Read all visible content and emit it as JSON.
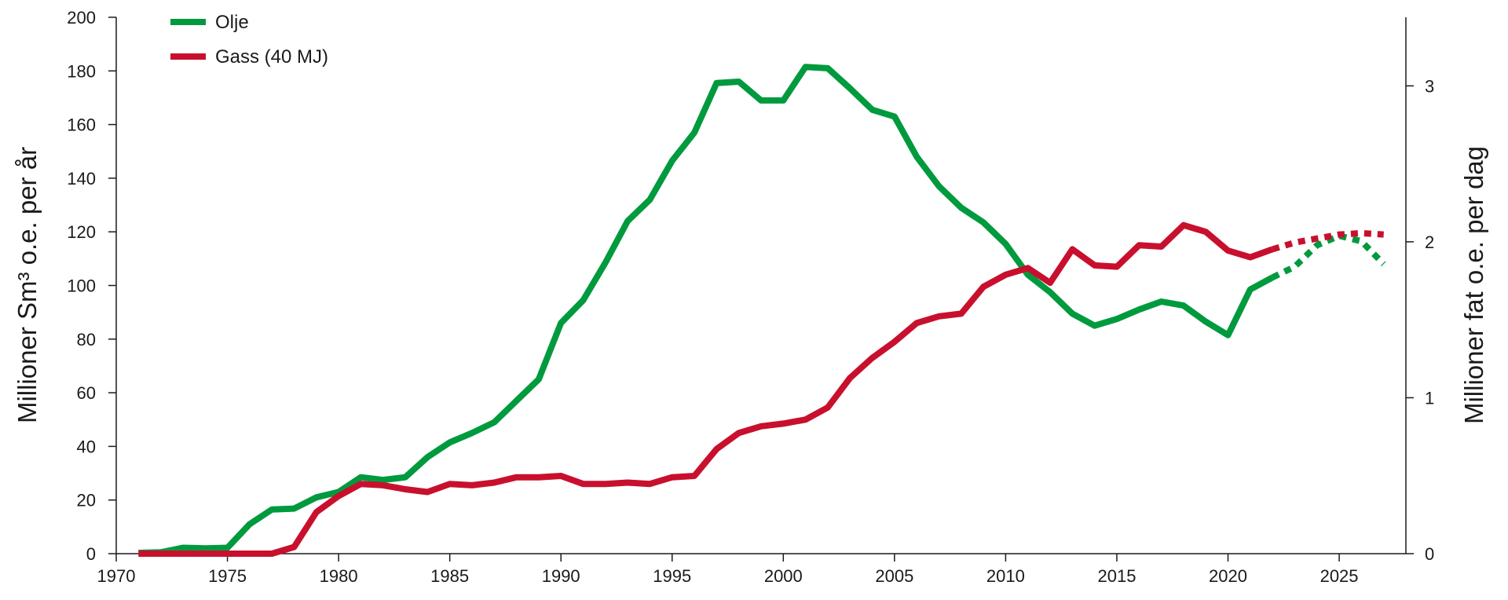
{
  "chart_data": {
    "type": "line",
    "title": "",
    "xlabel": "",
    "ylabel_left": "Millioner  Sm³ o.e. per år",
    "ylabel_right": "Millioner fat o.e. per dag",
    "xlim": [
      1970,
      2028
    ],
    "ylim_left": [
      0,
      200
    ],
    "ylim_right": [
      0,
      3.44
    ],
    "x_ticks": [
      1970,
      1975,
      1980,
      1985,
      1990,
      1995,
      2000,
      2005,
      2010,
      2015,
      2020,
      2025
    ],
    "y_ticks_left": [
      0,
      20,
      40,
      60,
      80,
      100,
      120,
      140,
      160,
      180,
      200
    ],
    "y_ticks_right": [
      0,
      1,
      2,
      3
    ],
    "grid": false,
    "legend_position": "top-left",
    "series": [
      {
        "name": "Olje",
        "color": "#009a3e",
        "x": [
          1971,
          1972,
          1973,
          1974,
          1975,
          1976,
          1977,
          1978,
          1979,
          1980,
          1981,
          1982,
          1983,
          1984,
          1985,
          1986,
          1987,
          1988,
          1989,
          1990,
          1991,
          1992,
          1993,
          1994,
          1995,
          1996,
          1997,
          1998,
          1999,
          2000,
          2001,
          2002,
          2003,
          2004,
          2005,
          2006,
          2007,
          2008,
          2009,
          2010,
          2011,
          2012,
          2013,
          2014,
          2015,
          2016,
          2017,
          2018,
          2019,
          2020,
          2021,
          2022
        ],
        "values": [
          0.3,
          0.5,
          2.2,
          2,
          2.2,
          11,
          16.5,
          16.8,
          21,
          23,
          28.5,
          27.5,
          28.5,
          36,
          41.5,
          45,
          49,
          57,
          65,
          86,
          94.5,
          108.5,
          124,
          132,
          146.5,
          157,
          175.5,
          176,
          169,
          169,
          181.5,
          181,
          173.5,
          165.5,
          163,
          148,
          137,
          129,
          123.5,
          115.5,
          104,
          97.5,
          89.5,
          85,
          87.5,
          91,
          94,
          92.5,
          86.5,
          81.5,
          98.5,
          103
        ],
        "forecast": {
          "x": [
            2022,
            2023,
            2024,
            2025,
            2026,
            2027
          ],
          "values": [
            103,
            107,
            115,
            118.5,
            116.5,
            108
          ]
        }
      },
      {
        "name": "Gass (40 MJ)",
        "color": "#c8102e",
        "x": [
          1971,
          1972,
          1973,
          1974,
          1975,
          1976,
          1977,
          1978,
          1979,
          1980,
          1981,
          1982,
          1983,
          1984,
          1985,
          1986,
          1987,
          1988,
          1989,
          1990,
          1991,
          1992,
          1993,
          1994,
          1995,
          1996,
          1997,
          1998,
          1999,
          2000,
          2001,
          2002,
          2003,
          2004,
          2005,
          2006,
          2007,
          2008,
          2009,
          2010,
          2011,
          2012,
          2013,
          2014,
          2015,
          2016,
          2017,
          2018,
          2019,
          2020,
          2021,
          2022
        ],
        "values": [
          0,
          0,
          0,
          0,
          0,
          0,
          0,
          2.5,
          15.5,
          21.5,
          26,
          25.5,
          24,
          23,
          26,
          25.5,
          26.5,
          28.5,
          28.5,
          29,
          26,
          26,
          26.5,
          26,
          28.5,
          29,
          39,
          45,
          47.5,
          48.5,
          50,
          54.5,
          65.5,
          73,
          79,
          86,
          88.5,
          89.5,
          99.5,
          104,
          106.5,
          101,
          113.5,
          107.5,
          107,
          115,
          114.5,
          122.5,
          120,
          113,
          110.5,
          113.5
        ],
        "forecast": {
          "x": [
            2022,
            2023,
            2024,
            2025,
            2026,
            2027
          ],
          "values": [
            113.5,
            116,
            117.5,
            119,
            119.5,
            119
          ]
        }
      }
    ]
  }
}
